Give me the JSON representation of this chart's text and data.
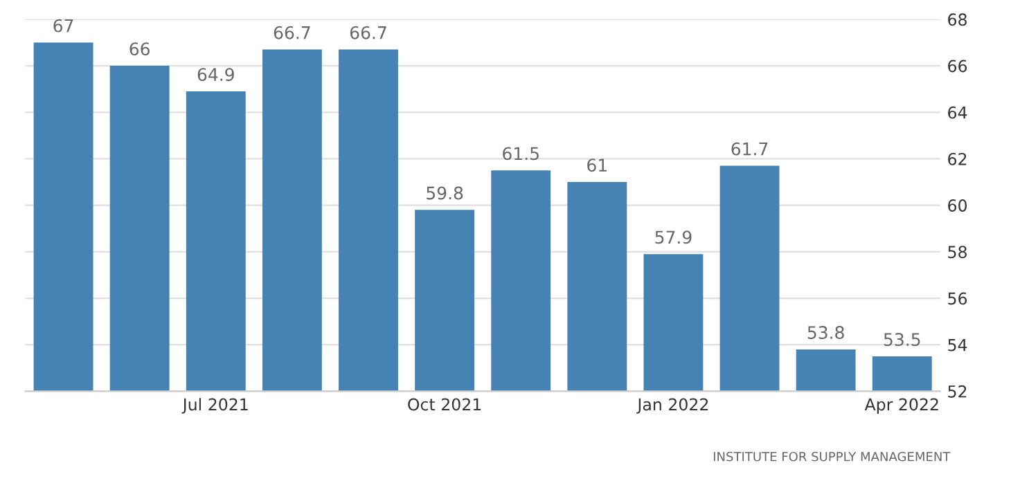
{
  "chart_data": {
    "type": "bar",
    "categories": [
      null,
      null,
      "Jul 2021",
      null,
      null,
      "Oct 2021",
      null,
      null,
      "Jan 2022",
      null,
      null,
      "Apr 2022"
    ],
    "values": [
      67,
      66,
      64.9,
      66.7,
      66.7,
      59.8,
      61.5,
      61,
      57.9,
      61.7,
      53.8,
      53.5
    ],
    "color": "#4682b4",
    "data_labels": true,
    "ylim": [
      52,
      68
    ],
    "yticks": [
      52,
      54,
      56,
      58,
      60,
      62,
      64,
      66,
      68
    ],
    "grid": "y",
    "annotations": [
      "INSTITUTE FOR SUPPLY MANAGEMENT"
    ]
  }
}
